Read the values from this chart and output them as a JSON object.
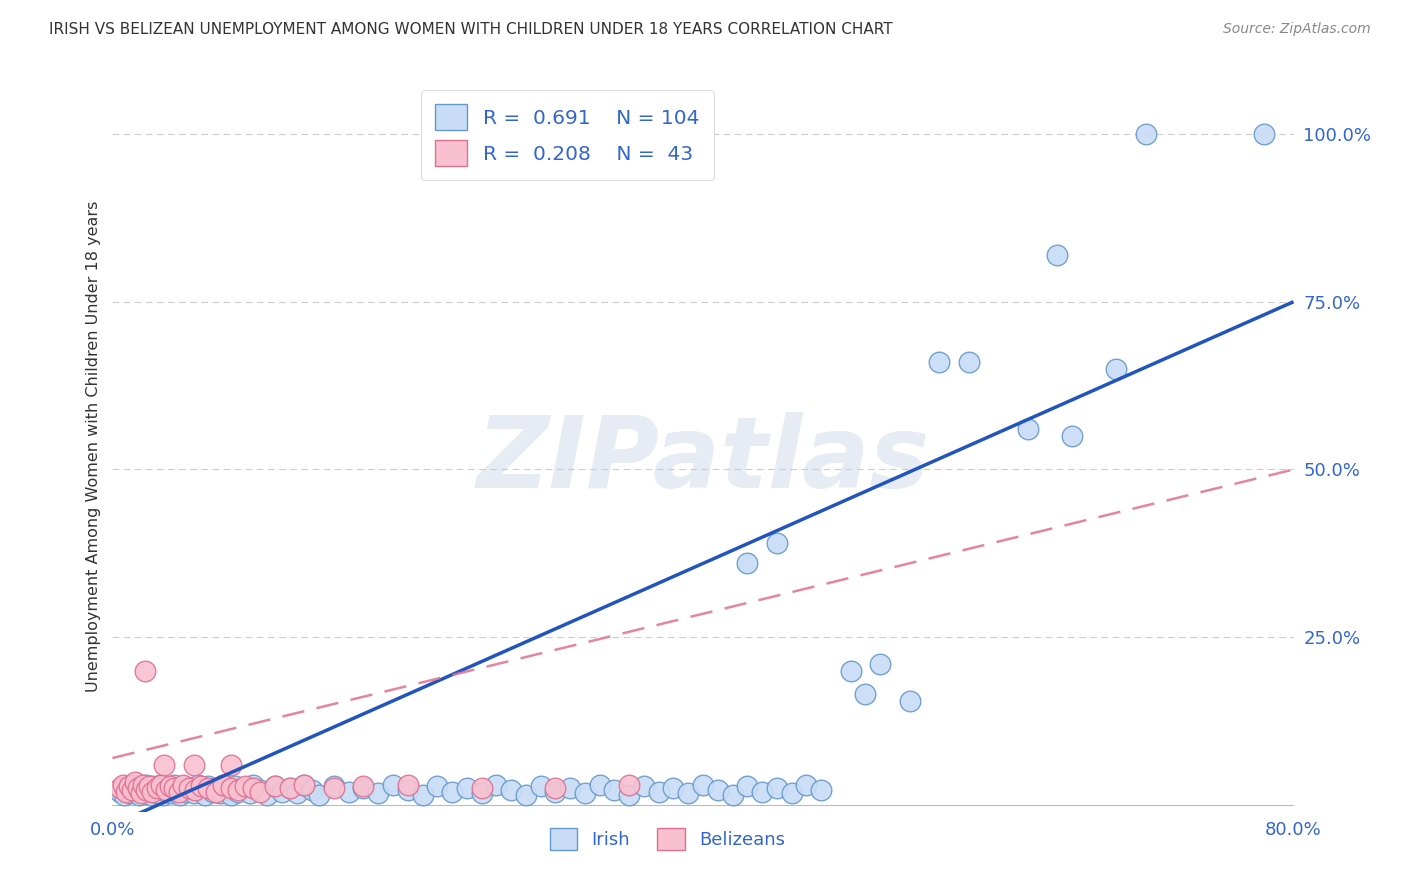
{
  "title": "IRISH VS BELIZEAN UNEMPLOYMENT AMONG WOMEN WITH CHILDREN UNDER 18 YEARS CORRELATION CHART",
  "source": "Source: ZipAtlas.com",
  "ylabel": "Unemployment Among Women with Children Under 18 years",
  "xlim": [
    0.0,
    0.8
  ],
  "ylim": [
    -0.01,
    1.08
  ],
  "ytick_positions": [
    0.25,
    0.5,
    0.75,
    1.0
  ],
  "ytick_labels": [
    "25.0%",
    "50.0%",
    "75.0%",
    "100.0%"
  ],
  "irish_face_color": "#c8dcf5",
  "irish_edge_color": "#6699cc",
  "belizean_face_color": "#f8c0d0",
  "belizean_edge_color": "#e07090",
  "trend_irish_color": "#2255bb",
  "trend_belizean_color": "#e07090",
  "legend_irish_r": "0.691",
  "legend_irish_n": "104",
  "legend_belizean_r": "0.208",
  "legend_belizean_n": "43",
  "watermark": "ZIPatlas",
  "background_color": "#ffffff",
  "grid_color": "#cccccc",
  "axis_color": "#3366cc",
  "title_color": "#333333",
  "source_color": "#888888",
  "irish_x": [
    0.005,
    0.008,
    0.01,
    0.012,
    0.013,
    0.015,
    0.017,
    0.018,
    0.02,
    0.021,
    0.022,
    0.023,
    0.025,
    0.026,
    0.027,
    0.028,
    0.03,
    0.031,
    0.032,
    0.033,
    0.034,
    0.035,
    0.037,
    0.038,
    0.04,
    0.042,
    0.044,
    0.046,
    0.048,
    0.05,
    0.052,
    0.055,
    0.058,
    0.06,
    0.063,
    0.065,
    0.068,
    0.07,
    0.073,
    0.075,
    0.078,
    0.08,
    0.083,
    0.085,
    0.09,
    0.093,
    0.095,
    0.1,
    0.105,
    0.11,
    0.115,
    0.12,
    0.125,
    0.13,
    0.135,
    0.14,
    0.15,
    0.16,
    0.17,
    0.18,
    0.19,
    0.2,
    0.21,
    0.22,
    0.23,
    0.24,
    0.25,
    0.26,
    0.27,
    0.28,
    0.29,
    0.3,
    0.31,
    0.32,
    0.33,
    0.34,
    0.35,
    0.36,
    0.37,
    0.38,
    0.39,
    0.4,
    0.41,
    0.42,
    0.43,
    0.44,
    0.45,
    0.46,
    0.47,
    0.48,
    0.43,
    0.45,
    0.5,
    0.51,
    0.52,
    0.54,
    0.56,
    0.58,
    0.62,
    0.64,
    0.65,
    0.68,
    0.7,
    0.78
  ],
  "irish_y": [
    0.02,
    0.015,
    0.025,
    0.018,
    0.03,
    0.022,
    0.028,
    0.015,
    0.02,
    0.025,
    0.018,
    0.03,
    0.022,
    0.015,
    0.028,
    0.02,
    0.025,
    0.018,
    0.03,
    0.022,
    0.015,
    0.028,
    0.02,
    0.025,
    0.018,
    0.03,
    0.022,
    0.015,
    0.028,
    0.02,
    0.025,
    0.018,
    0.03,
    0.022,
    0.015,
    0.028,
    0.02,
    0.025,
    0.018,
    0.03,
    0.022,
    0.015,
    0.028,
    0.02,
    0.025,
    0.018,
    0.03,
    0.022,
    0.015,
    0.028,
    0.02,
    0.025,
    0.018,
    0.03,
    0.022,
    0.015,
    0.028,
    0.02,
    0.025,
    0.018,
    0.03,
    0.022,
    0.015,
    0.028,
    0.02,
    0.025,
    0.018,
    0.03,
    0.022,
    0.015,
    0.028,
    0.02,
    0.025,
    0.018,
    0.03,
    0.022,
    0.015,
    0.028,
    0.02,
    0.025,
    0.018,
    0.03,
    0.022,
    0.015,
    0.028,
    0.02,
    0.025,
    0.018,
    0.03,
    0.022,
    0.36,
    0.39,
    0.2,
    0.165,
    0.21,
    0.155,
    0.66,
    0.66,
    0.56,
    0.82,
    0.55,
    0.65,
    1.0,
    1.0
  ],
  "belizean_x": [
    0.005,
    0.007,
    0.009,
    0.011,
    0.013,
    0.015,
    0.017,
    0.019,
    0.021,
    0.023,
    0.025,
    0.027,
    0.03,
    0.033,
    0.036,
    0.039,
    0.042,
    0.045,
    0.048,
    0.052,
    0.056,
    0.06,
    0.065,
    0.07,
    0.075,
    0.08,
    0.085,
    0.09,
    0.095,
    0.1,
    0.11,
    0.12,
    0.13,
    0.15,
    0.17,
    0.2,
    0.25,
    0.3,
    0.35,
    0.022,
    0.035,
    0.055,
    0.08
  ],
  "belizean_y": [
    0.025,
    0.03,
    0.02,
    0.028,
    0.022,
    0.035,
    0.025,
    0.018,
    0.03,
    0.022,
    0.028,
    0.02,
    0.025,
    0.03,
    0.022,
    0.028,
    0.025,
    0.02,
    0.03,
    0.025,
    0.022,
    0.028,
    0.025,
    0.02,
    0.03,
    0.025,
    0.022,
    0.028,
    0.025,
    0.02,
    0.028,
    0.025,
    0.03,
    0.025,
    0.028,
    0.03,
    0.025,
    0.025,
    0.03,
    0.2,
    0.06,
    0.06,
    0.06
  ],
  "trend_irish_x0": 0.0,
  "trend_irish_y0": -0.03,
  "trend_irish_x1": 0.8,
  "trend_irish_y1": 0.75,
  "trend_belizean_x0": 0.0,
  "trend_belizean_y0": 0.07,
  "trend_belizean_x1": 0.8,
  "trend_belizean_y1": 0.5
}
